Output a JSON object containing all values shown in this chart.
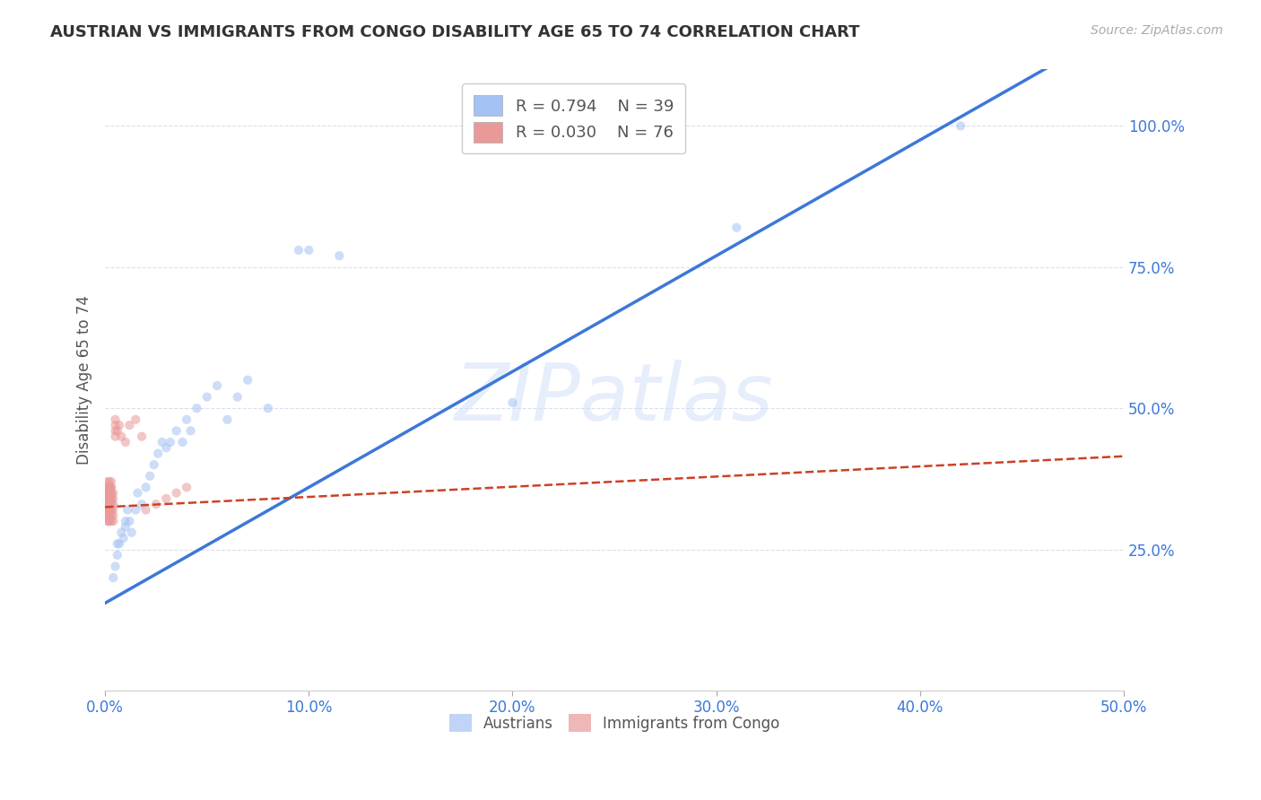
{
  "title": "AUSTRIAN VS IMMIGRANTS FROM CONGO DISABILITY AGE 65 TO 74 CORRELATION CHART",
  "source": "Source: ZipAtlas.com",
  "ylabel": "Disability Age 65 to 74",
  "xlim": [
    0.0,
    0.5
  ],
  "ylim": [
    0.0,
    1.1
  ],
  "xticks": [
    0.0,
    0.1,
    0.2,
    0.3,
    0.4,
    0.5
  ],
  "xticklabels": [
    "0.0%",
    "10.0%",
    "20.0%",
    "30.0%",
    "40.0%",
    "50.0%"
  ],
  "yticks": [
    0.25,
    0.5,
    0.75,
    1.0
  ],
  "yticklabels": [
    "25.0%",
    "50.0%",
    "75.0%",
    "100.0%"
  ],
  "background_color": "#ffffff",
  "grid_color": "#d0d8e8",
  "watermark": "ZIPatlas",
  "austrians_color": "#a4c2f4",
  "congo_color": "#ea9999",
  "trendline_austrians_color": "#3c78d8",
  "trendline_congo_color": "#cc4125",
  "austrians_x": [
    0.004,
    0.005,
    0.006,
    0.006,
    0.007,
    0.008,
    0.009,
    0.01,
    0.01,
    0.011,
    0.012,
    0.013,
    0.015,
    0.016,
    0.018,
    0.02,
    0.022,
    0.024,
    0.026,
    0.028,
    0.03,
    0.032,
    0.035,
    0.038,
    0.04,
    0.042,
    0.045,
    0.05,
    0.055,
    0.06,
    0.065,
    0.07,
    0.08,
    0.095,
    0.1,
    0.115,
    0.2,
    0.31,
    0.42
  ],
  "austrians_y": [
    0.2,
    0.22,
    0.24,
    0.26,
    0.26,
    0.28,
    0.27,
    0.3,
    0.29,
    0.32,
    0.3,
    0.28,
    0.32,
    0.35,
    0.33,
    0.36,
    0.38,
    0.4,
    0.42,
    0.44,
    0.43,
    0.44,
    0.46,
    0.44,
    0.48,
    0.46,
    0.5,
    0.52,
    0.54,
    0.48,
    0.52,
    0.55,
    0.5,
    0.78,
    0.78,
    0.77,
    0.51,
    0.82,
    1.0
  ],
  "congo_x": [
    0.001,
    0.001,
    0.001,
    0.001,
    0.001,
    0.001,
    0.001,
    0.001,
    0.001,
    0.001,
    0.001,
    0.001,
    0.001,
    0.001,
    0.001,
    0.001,
    0.002,
    0.002,
    0.002,
    0.002,
    0.002,
    0.002,
    0.002,
    0.002,
    0.002,
    0.002,
    0.002,
    0.002,
    0.002,
    0.002,
    0.002,
    0.002,
    0.002,
    0.002,
    0.002,
    0.002,
    0.002,
    0.002,
    0.002,
    0.002,
    0.002,
    0.003,
    0.003,
    0.003,
    0.003,
    0.003,
    0.003,
    0.003,
    0.003,
    0.003,
    0.003,
    0.003,
    0.003,
    0.003,
    0.004,
    0.004,
    0.004,
    0.004,
    0.004,
    0.004,
    0.005,
    0.005,
    0.005,
    0.005,
    0.006,
    0.007,
    0.008,
    0.01,
    0.012,
    0.015,
    0.018,
    0.02,
    0.025,
    0.03,
    0.035,
    0.04
  ],
  "congo_y": [
    0.3,
    0.31,
    0.32,
    0.33,
    0.34,
    0.35,
    0.36,
    0.37,
    0.32,
    0.33,
    0.34,
    0.35,
    0.36,
    0.32,
    0.33,
    0.34,
    0.3,
    0.31,
    0.32,
    0.33,
    0.34,
    0.35,
    0.3,
    0.31,
    0.32,
    0.33,
    0.34,
    0.35,
    0.36,
    0.37,
    0.32,
    0.33,
    0.34,
    0.35,
    0.36,
    0.31,
    0.32,
    0.33,
    0.34,
    0.35,
    0.36,
    0.3,
    0.31,
    0.32,
    0.33,
    0.34,
    0.35,
    0.36,
    0.32,
    0.33,
    0.34,
    0.35,
    0.36,
    0.37,
    0.3,
    0.31,
    0.32,
    0.33,
    0.34,
    0.35,
    0.45,
    0.46,
    0.47,
    0.48,
    0.46,
    0.47,
    0.45,
    0.44,
    0.47,
    0.48,
    0.45,
    0.32,
    0.33,
    0.34,
    0.35,
    0.36
  ],
  "marker_size": 55,
  "marker_alpha": 0.55,
  "trendline_austrians_slope": 2.05,
  "trendline_austrians_intercept": 0.155,
  "trendline_congo_slope": 0.18,
  "trendline_congo_intercept": 0.325
}
